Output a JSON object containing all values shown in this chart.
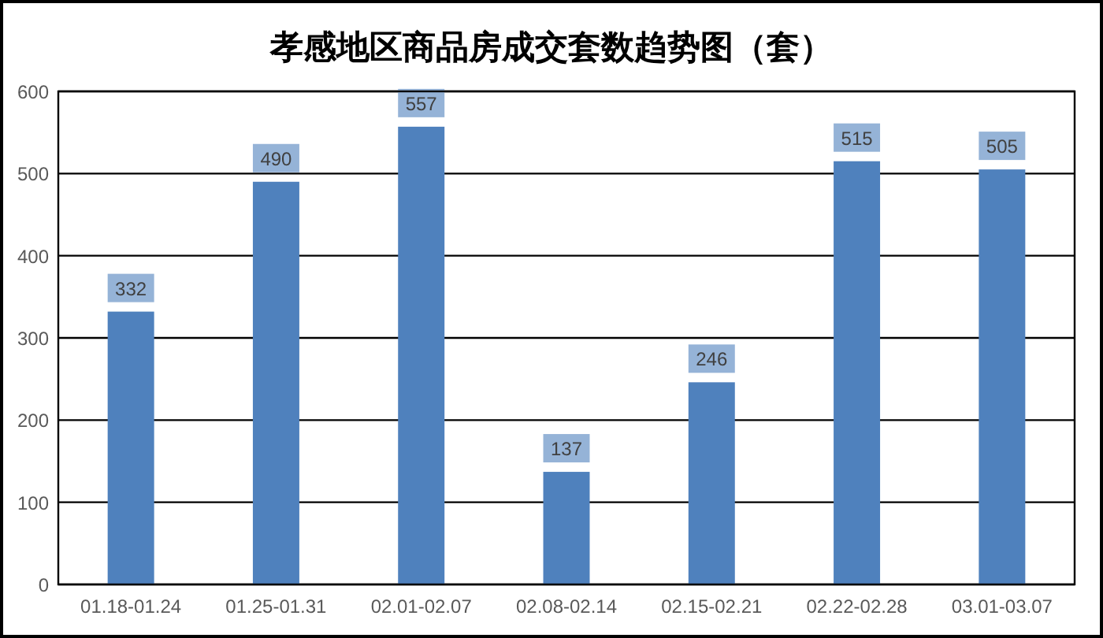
{
  "chart_data": {
    "type": "bar",
    "title": "孝感地区商品房成交套数趋势图（套）",
    "categories": [
      "01.18-01.24",
      "01.25-01.31",
      "02.01-02.07",
      "02.08-02.14",
      "02.15-02.21",
      "02.22-02.28",
      "03.01-03.07"
    ],
    "values": [
      332,
      490,
      557,
      137,
      246,
      515,
      505
    ],
    "color": "#4f81bd",
    "ylim": [
      0,
      600
    ],
    "yticks": [
      0,
      100,
      200,
      300,
      400,
      500,
      600
    ],
    "grid": "y",
    "data_labels": true
  }
}
